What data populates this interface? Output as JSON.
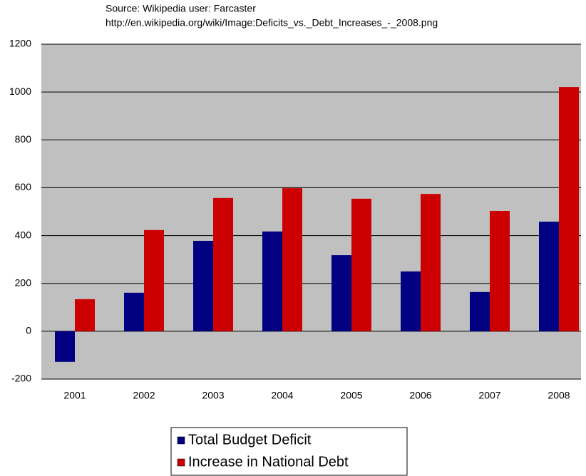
{
  "chart_data": {
    "type": "bar",
    "subtitle": [
      "Source:  Wikipedia user: Farcaster",
      "http://en.wikipedia.org/wiki/Image:Deficits_vs._Debt_Increases_-_2008.png"
    ],
    "categories": [
      "2001",
      "2002",
      "2003",
      "2004",
      "2005",
      "2006",
      "2007",
      "2008"
    ],
    "series": [
      {
        "name": "Total Budget Deficit",
        "color": "#000080",
        "values": [
          -128,
          161,
          378,
          417,
          318,
          250,
          164,
          458
        ]
      },
      {
        "name": "Increase in National Debt",
        "color": "#cc0000",
        "values": [
          134,
          423,
          557,
          598,
          554,
          574,
          503,
          1021
        ]
      }
    ],
    "ylim": [
      -200,
      1200
    ],
    "yticks": [
      -200,
      0,
      200,
      400,
      600,
      800,
      1000,
      1200
    ],
    "grid": true,
    "legend": "bottom"
  }
}
